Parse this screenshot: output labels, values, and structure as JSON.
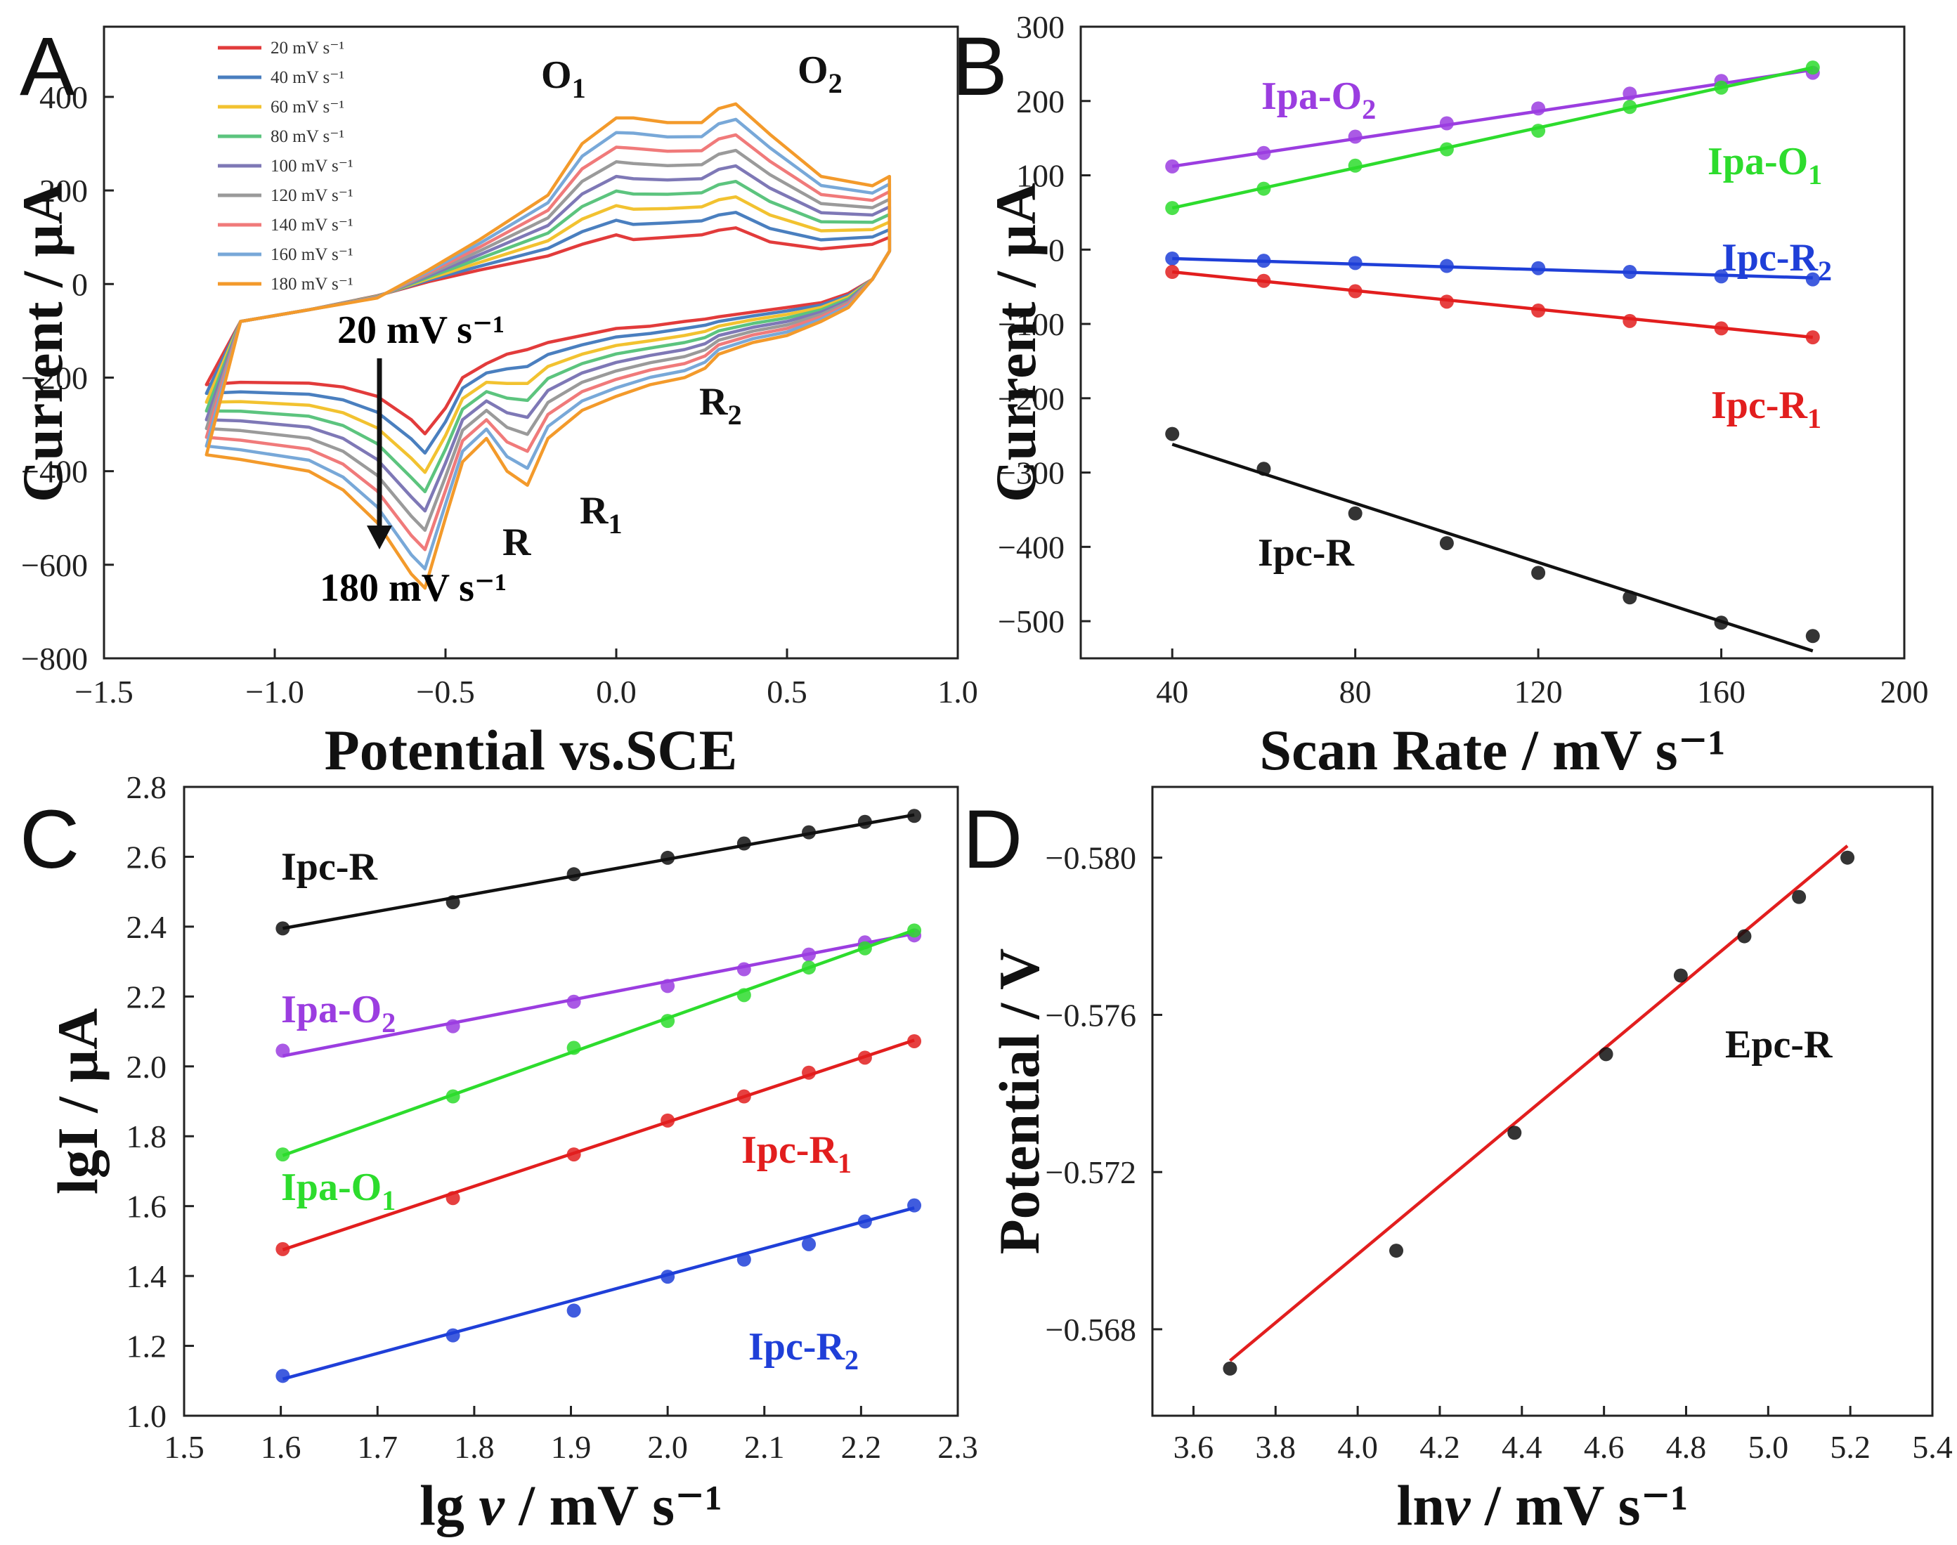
{
  "chart_data": [
    {
      "id": "A",
      "panel_label": "A",
      "type": "line",
      "title": "",
      "xlabel": "Potential vs.SCE",
      "ylabel": "Current / μA",
      "xlim": [
        -1.5,
        1.0
      ],
      "ylim": [
        -800,
        550
      ],
      "xticks": [
        -1.5,
        -1.0,
        -0.5,
        0.0,
        0.5,
        1.0
      ],
      "xtick_labels": [
        "−1.5",
        "−1.0",
        "−0.5",
        "0.0",
        "0.5",
        "1.0"
      ],
      "yticks": [
        -800,
        -600,
        -400,
        -200,
        0,
        200,
        400
      ],
      "ytick_labels": [
        "−800",
        "−600",
        "−400",
        "−200",
        "0",
        "200",
        "400"
      ],
      "legend_position": "top-left",
      "series": [
        {
          "name": "20 mV s⁻¹",
          "scan_rate": 20,
          "color": "#e23b3b"
        },
        {
          "name": "40 mV s⁻¹",
          "scan_rate": 40,
          "color": "#4a7fbf"
        },
        {
          "name": "60 mV s⁻¹",
          "scan_rate": 60,
          "color": "#f2c230"
        },
        {
          "name": "80 mV s⁻¹",
          "scan_rate": 80,
          "color": "#5cc47e"
        },
        {
          "name": "100 mV s⁻¹",
          "scan_rate": 100,
          "color": "#7e78b6"
        },
        {
          "name": "120 mV s⁻¹",
          "scan_rate": 120,
          "color": "#9a9a9a"
        },
        {
          "name": "140 mV s⁻¹",
          "scan_rate": 140,
          "color": "#f07a7a"
        },
        {
          "name": "160 mV s⁻¹",
          "scan_rate": 160,
          "color": "#78a8d8"
        },
        {
          "name": "180 mV s⁻¹",
          "scan_rate": 180,
          "color": "#f39a2b"
        }
      ],
      "cv_points": {
        "x_upper": [
          -1.2,
          -1.1,
          -0.9,
          -0.7,
          -0.55,
          -0.4,
          -0.2,
          -0.1,
          0.0,
          0.05,
          0.15,
          0.25,
          0.3,
          0.35,
          0.45,
          0.6,
          0.75,
          0.8
        ],
        "x_lower": [
          -1.2,
          -1.1,
          -0.9,
          -0.8,
          -0.7,
          -0.6,
          -0.56,
          -0.5,
          -0.45,
          -0.38,
          -0.32,
          -0.26,
          -0.2,
          -0.1,
          0.0,
          0.1,
          0.2,
          0.26,
          0.3,
          0.4,
          0.5,
          0.6,
          0.68,
          0.75,
          0.8
        ],
        "upper_20": [
          -215,
          -80,
          -55,
          -25,
          5,
          30,
          60,
          85,
          105,
          95,
          100,
          105,
          115,
          120,
          90,
          75,
          85,
          100
        ],
        "upper_180": [
          -365,
          -80,
          -55,
          -30,
          30,
          95,
          190,
          300,
          355,
          355,
          345,
          345,
          375,
          385,
          320,
          230,
          210,
          230
        ],
        "lower_20": [
          -215,
          -210,
          -212,
          -220,
          -240,
          -290,
          -320,
          -265,
          -200,
          -170,
          -150,
          -140,
          -125,
          -110,
          -95,
          -90,
          -80,
          -75,
          -70,
          -60,
          -50,
          -40,
          -20,
          10,
          70
        ],
        "lower_180": [
          -365,
          -375,
          -400,
          -440,
          -510,
          -620,
          -650,
          -500,
          -380,
          -330,
          -400,
          -430,
          -330,
          -270,
          -240,
          -215,
          -200,
          -180,
          -150,
          -125,
          -110,
          -80,
          -50,
          10,
          70
        ]
      },
      "annotations": [
        {
          "text": "O",
          "sub": "1"
        },
        {
          "text": "O",
          "sub": "2"
        },
        {
          "text": "R",
          "sub": ""
        },
        {
          "text": "R",
          "sub": "1"
        },
        {
          "text": "R",
          "sub": "2"
        },
        {
          "text": "20 mV s⁻¹",
          "sub": ""
        },
        {
          "text": "180 mV s⁻¹",
          "sub": ""
        }
      ]
    },
    {
      "id": "B",
      "panel_label": "B",
      "type": "scatter",
      "title": "",
      "xlabel": "Scan Rate / mV s⁻¹",
      "ylabel": "Current / μA",
      "xlim": [
        20,
        200
      ],
      "ylim": [
        -550,
        300
      ],
      "xticks": [
        40,
        80,
        120,
        160,
        200
      ],
      "xtick_labels": [
        "40",
        "80",
        "120",
        "160",
        "200"
      ],
      "yticks": [
        -500,
        -400,
        -300,
        -200,
        -100,
        0,
        100,
        200,
        300
      ],
      "ytick_labels": [
        "−500",
        "−400",
        "−300",
        "−200",
        "−100",
        "0",
        "100",
        "200",
        "300"
      ],
      "x": [
        40,
        60,
        80,
        100,
        120,
        140,
        160,
        180
      ],
      "series": [
        {
          "name": "Ipa-O",
          "sub": "2",
          "color": "#9b3de0",
          "values": [
            112,
            130,
            152,
            170,
            190,
            210,
            227,
            238
          ],
          "fit": [
            112,
            242
          ]
        },
        {
          "name": "Ipa-O",
          "sub": "1",
          "color": "#2ddc2d",
          "values": [
            56,
            82,
            113,
            135,
            160,
            192,
            218,
            245
          ],
          "fit": [
            56,
            245
          ]
        },
        {
          "name": "Ipc-R",
          "sub": "2",
          "color": "#1f3fd8",
          "values": [
            -12,
            -15,
            -18,
            -22,
            -25,
            -30,
            -36,
            -40
          ],
          "fit": [
            -12,
            -38
          ]
        },
        {
          "name": "Ipc-R",
          "sub": "1",
          "color": "#e21e1e",
          "values": [
            -30,
            -42,
            -56,
            -70,
            -82,
            -96,
            -106,
            -118
          ],
          "fit": [
            -30,
            -118
          ]
        },
        {
          "name": "Ipc-R",
          "sub": "",
          "color": "#111111",
          "values": [
            -248,
            -295,
            -355,
            -395,
            -435,
            -468,
            -502,
            -520
          ],
          "fit": [
            -262,
            -540
          ]
        }
      ]
    },
    {
      "id": "C",
      "panel_label": "C",
      "type": "scatter",
      "title": "",
      "xlabel": "lg v / mV s⁻¹",
      "xlabel_main": "lg ",
      "xlabel_var": "v",
      "xlabel_unit": " / mV s⁻¹",
      "ylabel": "lgI / μA",
      "xlim": [
        1.5,
        2.3
      ],
      "ylim": [
        1.0,
        2.8
      ],
      "xticks": [
        1.5,
        1.6,
        1.7,
        1.8,
        1.9,
        2.0,
        2.1,
        2.2,
        2.3
      ],
      "xtick_labels": [
        "1.5",
        "1.6",
        "1.7",
        "1.8",
        "1.9",
        "2.0",
        "2.1",
        "2.2",
        "2.3"
      ],
      "yticks": [
        1.0,
        1.2,
        1.4,
        1.6,
        1.8,
        2.0,
        2.2,
        2.4,
        2.6,
        2.8
      ],
      "ytick_labels": [
        "1.0",
        "1.2",
        "1.4",
        "1.6",
        "1.8",
        "2.0",
        "2.2",
        "2.4",
        "2.6",
        "2.8"
      ],
      "x": [
        1.602,
        1.778,
        1.903,
        2.0,
        2.079,
        2.146,
        2.204,
        2.255
      ],
      "series": [
        {
          "name": "Ipc-R",
          "sub": "",
          "color": "#111111",
          "values": [
            2.395,
            2.47,
            2.55,
            2.597,
            2.638,
            2.67,
            2.7,
            2.717
          ],
          "fit": [
            2.395,
            2.72
          ]
        },
        {
          "name": "Ipa-O",
          "sub": "2",
          "color": "#9b3de0",
          "values": [
            2.045,
            2.115,
            2.185,
            2.23,
            2.278,
            2.32,
            2.355,
            2.375
          ],
          "fit": [
            2.03,
            2.38
          ]
        },
        {
          "name": "Ipa-O",
          "sub": "1",
          "color": "#2ddc2d",
          "values": [
            1.748,
            1.914,
            2.053,
            2.13,
            2.204,
            2.283,
            2.338,
            2.389
          ],
          "fit": [
            1.745,
            2.39
          ]
        },
        {
          "name": "Ipc-R",
          "sub": "1",
          "color": "#e21e1e",
          "values": [
            1.477,
            1.623,
            1.748,
            1.845,
            1.914,
            1.982,
            2.025,
            2.072
          ],
          "fit": [
            1.475,
            2.075
          ]
        },
        {
          "name": "Ipc-R",
          "sub": "2",
          "color": "#1f3fd8",
          "values": [
            1.114,
            1.23,
            1.301,
            1.398,
            1.447,
            1.491,
            1.556,
            1.602
          ],
          "fit": [
            1.105,
            1.595
          ]
        }
      ]
    },
    {
      "id": "D",
      "panel_label": "D",
      "type": "scatter",
      "title": "",
      "xlabel": "lnv / mV s⁻¹",
      "xlabel_main": "ln",
      "xlabel_var": "v",
      "xlabel_unit": " / mV s⁻¹",
      "ylabel": "Potential / V",
      "xlim": [
        3.5,
        5.4
      ],
      "ylim": [
        -0.5658,
        -0.5818
      ],
      "xticks": [
        3.6,
        3.8,
        4.0,
        4.2,
        4.4,
        4.6,
        4.8,
        5.0,
        5.2,
        5.4
      ],
      "xtick_labels": [
        "3.6",
        "3.8",
        "4.0",
        "4.2",
        "4.4",
        "4.6",
        "4.8",
        "5.0",
        "5.2",
        "5.4"
      ],
      "yticks": [
        -0.568,
        -0.572,
        -0.576,
        -0.58
      ],
      "ytick_labels": [
        "−0.568",
        "−0.572",
        "−0.576",
        "−0.580"
      ],
      "x": [
        3.689,
        4.094,
        4.382,
        4.605,
        4.787,
        4.942,
        5.075,
        5.193
      ],
      "series": [
        {
          "name": "Epc-R",
          "sub": "",
          "color": "#111111",
          "fit_color": "#e21e1e",
          "values": [
            -0.567,
            -0.57,
            -0.573,
            -0.575,
            -0.577,
            -0.578,
            -0.579,
            -0.58
          ],
          "fit": [
            -0.5672,
            -0.5803
          ]
        }
      ]
    }
  ],
  "colors": {
    "axis": "#222222",
    "text": "#111111"
  }
}
